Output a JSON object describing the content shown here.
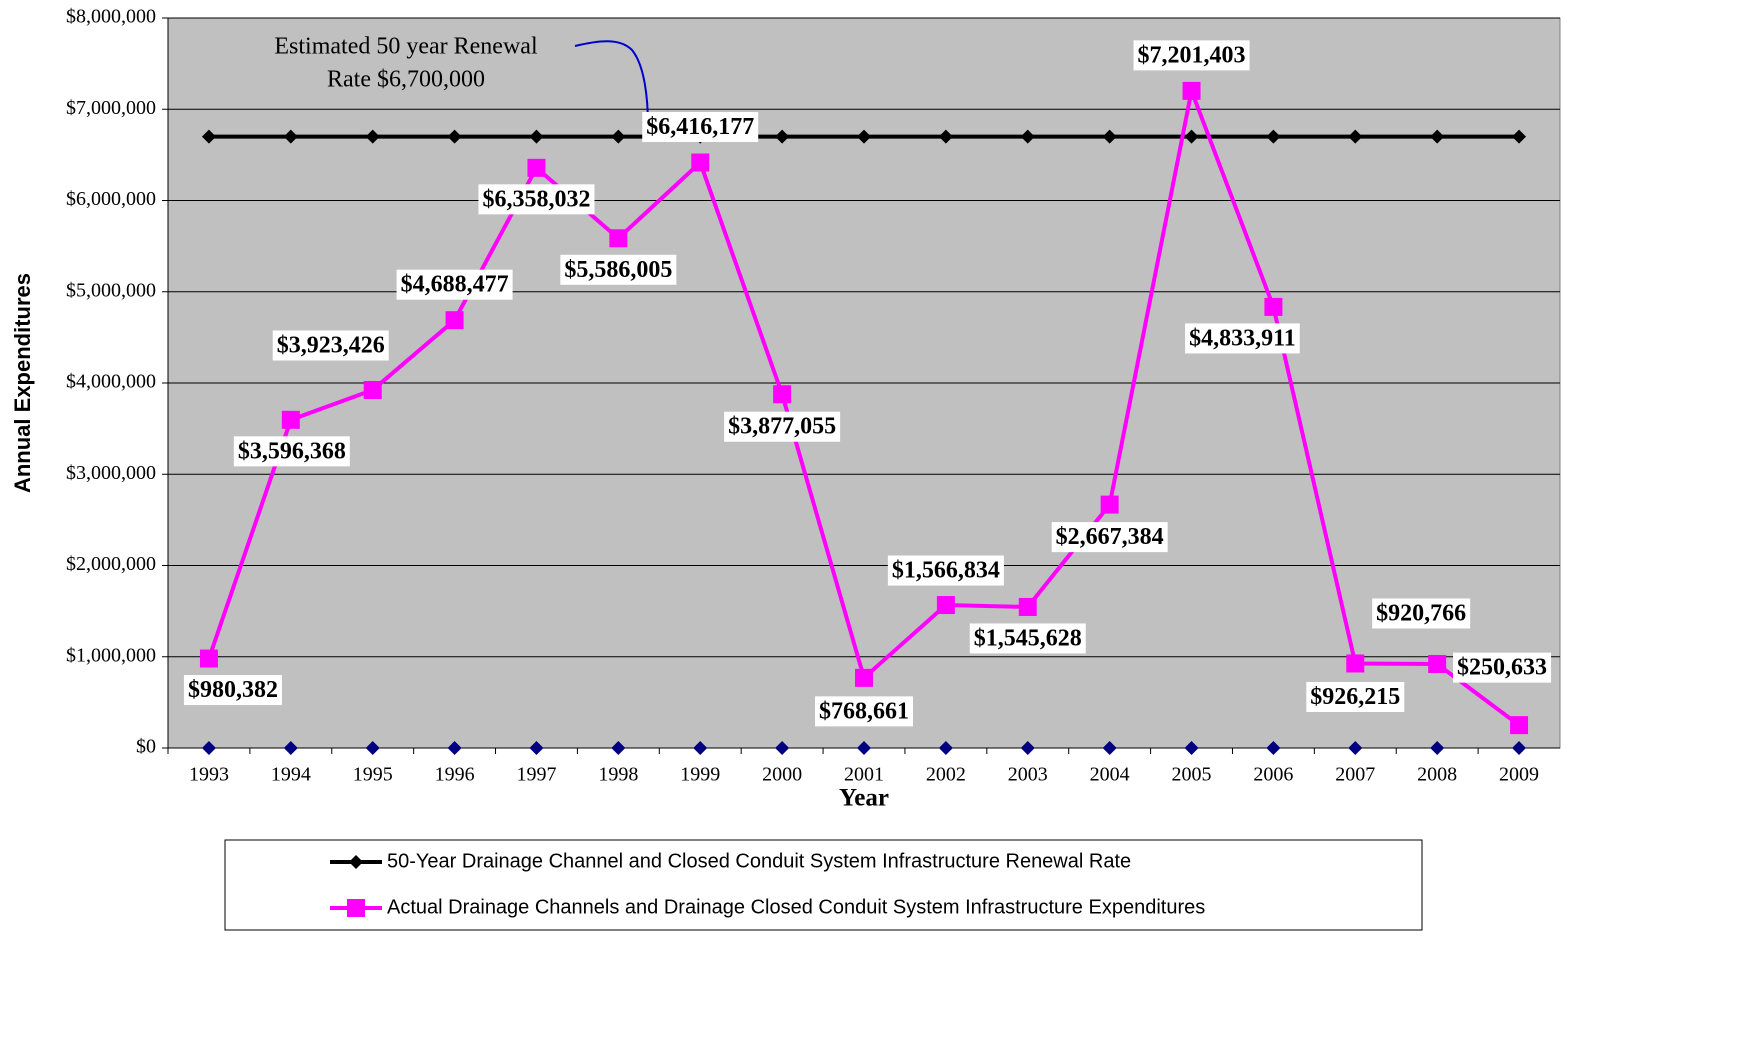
{
  "chart_data": {
    "type": "line",
    "x_label": "Year",
    "y_label": "Annual Expenditures",
    "annotation": [
      "Estimated 50 year Renewal",
      "Rate $6,700,000"
    ],
    "categories": [
      "1993",
      "1994",
      "1995",
      "1996",
      "1997",
      "1998",
      "1999",
      "2000",
      "2001",
      "2002",
      "2003",
      "2004",
      "2005",
      "2006",
      "2007",
      "2008",
      "2009"
    ],
    "ylim": [
      0,
      8000000
    ],
    "yticks": [
      {
        "value": 0,
        "label": "$0"
      },
      {
        "value": 1000000,
        "label": "$1,000,000"
      },
      {
        "value": 2000000,
        "label": "$2,000,000"
      },
      {
        "value": 3000000,
        "label": "$3,000,000"
      },
      {
        "value": 4000000,
        "label": "$4,000,000"
      },
      {
        "value": 5000000,
        "label": "$5,000,000"
      },
      {
        "value": 6000000,
        "label": "$6,000,000"
      },
      {
        "value": 7000000,
        "label": "$7,000,000"
      },
      {
        "value": 8000000,
        "label": "$8,000,000"
      }
    ],
    "grid": true,
    "background": "#c0c0c0",
    "series": [
      {
        "name": "50-Year Drainage Channel and Closed Conduit System Infrastructure Renewal Rate",
        "color": "#000000",
        "marker": "diamond",
        "values": [
          6700000,
          6700000,
          6700000,
          6700000,
          6700000,
          6700000,
          6700000,
          6700000,
          6700000,
          6700000,
          6700000,
          6700000,
          6700000,
          6700000,
          6700000,
          6700000,
          6700000
        ]
      },
      {
        "name": "Actual Drainage Channels and Drainage Closed Conduit System Infrastructure Expenditures",
        "color": "#ff00ff",
        "marker": "square",
        "values": [
          980382,
          3596368,
          3923426,
          4688477,
          6358032,
          5586005,
          6416177,
          3877055,
          768661,
          1566834,
          1545628,
          2667384,
          7201403,
          4833911,
          926215,
          920766,
          250633
        ],
        "value_labels": [
          "$980,382",
          "$3,596,368",
          "$3,923,426",
          "$4,688,477",
          "$6,358,032",
          "$5,586,005",
          "$6,416,177",
          "$3,877,055",
          "$768,661",
          "$1,566,834",
          "$1,545,628",
          "$2,667,384",
          "$7,201,403",
          "$4,833,911",
          "$926,215",
          "$920,766",
          "$250,633"
        ]
      },
      {
        "color": "#000080",
        "marker": "diamond",
        "line": false,
        "values": [
          0,
          0,
          0,
          0,
          0,
          0,
          0,
          0,
          0,
          0,
          0,
          0,
          0,
          0,
          0,
          0,
          0
        ]
      }
    ]
  }
}
